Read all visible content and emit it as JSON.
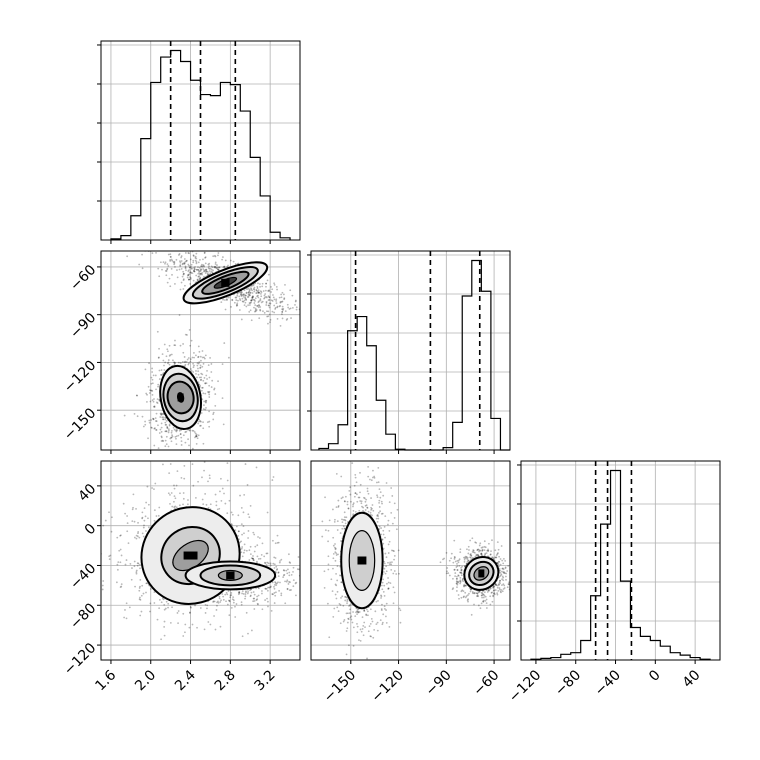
{
  "chart_data": {
    "type": "corner",
    "grid": true,
    "parameters": [
      {
        "range": [
          1.5,
          3.5
        ],
        "ticks": [
          1.6,
          2.0,
          2.4,
          2.8,
          3.2
        ],
        "tick_labels": [
          "1.6",
          "2.0",
          "2.4",
          "2.8",
          "3.2"
        ],
        "quantiles": [
          2.2,
          2.5,
          2.85
        ]
      },
      {
        "range": [
          -175,
          -50
        ],
        "ticks": [
          -150,
          -120,
          -90,
          -60
        ],
        "tick_labels": [
          "−150",
          "−120",
          "−90",
          "−60"
        ],
        "quantiles": [
          -147,
          -100,
          -69
        ]
      },
      {
        "range": [
          -135,
          65
        ],
        "ticks": [
          -120,
          -80,
          -40,
          0,
          40
        ],
        "tick_labels": [
          "−120",
          "−80",
          "−40",
          "0",
          "40"
        ],
        "quantiles": [
          -60,
          -48,
          -24
        ]
      }
    ],
    "histograms": [
      {
        "param": 0,
        "bins": [
          1.6,
          1.7,
          1.8,
          1.9,
          2.0,
          2.1,
          2.2,
          2.3,
          2.4,
          2.5,
          2.6,
          2.7,
          2.8,
          2.9,
          3.0,
          3.1,
          3.2,
          3.3
        ],
        "counts": [
          1,
          4,
          22,
          92,
          143,
          166,
          172,
          162,
          145,
          132,
          131,
          143,
          141,
          117,
          75,
          40,
          7,
          2
        ]
      },
      {
        "param": 1,
        "bins": [
          -170,
          -164,
          -158,
          -152,
          -146,
          -140,
          -134,
          -128,
          -122,
          -116,
          -110,
          -104,
          -98,
          -92,
          -86,
          -80,
          -74,
          -68,
          -62,
          -56
        ],
        "counts": [
          2,
          8,
          32,
          151,
          169,
          132,
          63,
          20,
          1,
          0,
          0,
          0,
          0,
          3,
          35,
          195,
          240,
          201,
          40,
          0
        ]
      },
      {
        "param": 2,
        "bins": [
          -125,
          -115,
          -105,
          -95,
          -85,
          -75,
          -65,
          -55,
          -45,
          -35,
          -25,
          -15,
          -5,
          5,
          15,
          25,
          35,
          45
        ],
        "counts": [
          1,
          2,
          3,
          7,
          9,
          24,
          79,
          167,
          233,
          97,
          40,
          29,
          24,
          17,
          9,
          6,
          3,
          1
        ]
      }
    ],
    "pairs": [
      {
        "x_param": 0,
        "y_param": 1,
        "modes": [
          {
            "cx": 2.3,
            "cy": -142,
            "rx": [
              0.2,
              0.17,
              0.13,
              0.03
            ],
            "ry": [
              20,
              15,
              10,
              3
            ],
            "rot": 10
          },
          {
            "cx": 2.75,
            "cy": -70,
            "rx": [
              0.45,
              0.35,
              0.25,
              0.12
            ],
            "ry": [
              8,
              6,
              4,
              2
            ],
            "rot": 22
          }
        ]
      },
      {
        "x_param": 0,
        "y_param": 2,
        "modes": [
          {
            "cx": 2.4,
            "cy": -30,
            "rx": [
              0.5,
              0.3,
              0.2
            ],
            "ry": [
              48,
              28,
              12
            ],
            "rot": 35
          },
          {
            "cx": 2.8,
            "cy": -50,
            "rx": [
              0.45,
              0.3,
              0.12
            ],
            "ry": [
              14,
              10,
              5
            ],
            "rot": 0
          }
        ]
      },
      {
        "x_param": 1,
        "y_param": 2,
        "modes": [
          {
            "cx": -143,
            "cy": -35,
            "rx": [
              13,
              8
            ],
            "ry": [
              48,
              30
            ],
            "rot": 0
          },
          {
            "cx": -68,
            "cy": -48,
            "rx": [
              11,
              8,
              5
            ],
            "ry": [
              16,
              11,
              6
            ],
            "rot": 35
          }
        ]
      }
    ],
    "title": "",
    "xlabel": "",
    "ylabel": ""
  }
}
